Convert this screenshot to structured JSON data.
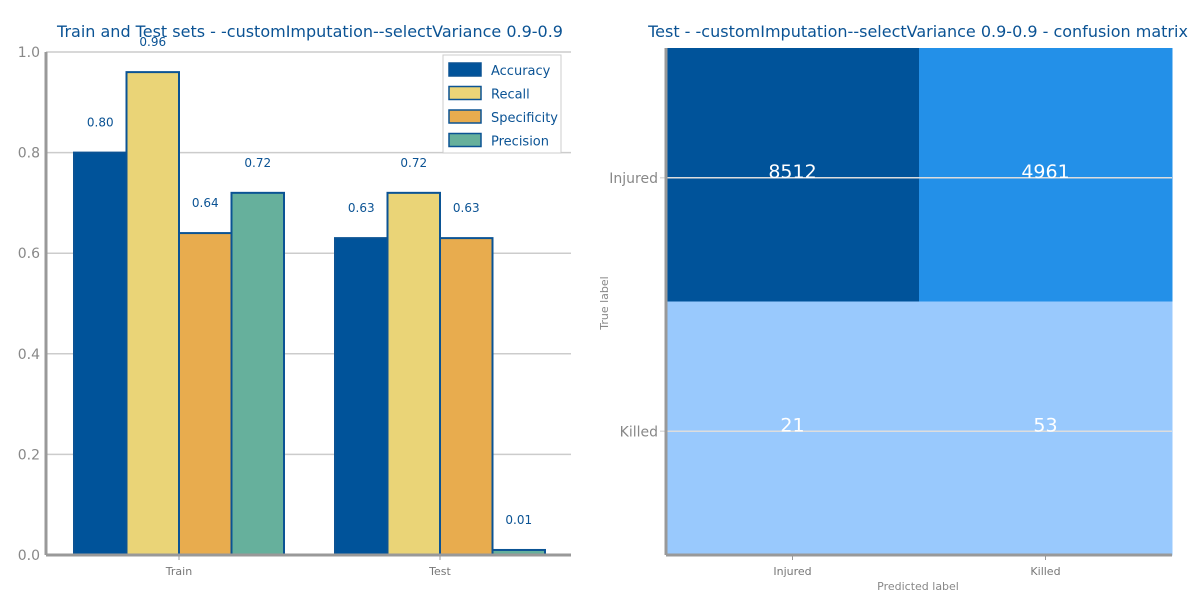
{
  "chart_data": [
    {
      "type": "bar",
      "title": "Train and Test sets - -customImputation--selectVariance 0.9-0.9",
      "categories": [
        "Train",
        "Test"
      ],
      "ylim": [
        0,
        1.0
      ],
      "yticks": [
        "0.0",
        "0.2",
        "0.4",
        "0.6",
        "0.8",
        "1.0"
      ],
      "grid": "horizontal",
      "legend_position": "top-right",
      "series": [
        {
          "name": "Accuracy",
          "color": "#00539a",
          "values": [
            0.8,
            0.63
          ],
          "labels": [
            "0.80",
            "0.63"
          ]
        },
        {
          "name": "Recall",
          "color": "#ead477",
          "values": [
            0.96,
            0.72
          ],
          "labels": [
            "0.96",
            "0.72"
          ]
        },
        {
          "name": "Specificity",
          "color": "#e8ac4e",
          "values": [
            0.64,
            0.63
          ],
          "labels": [
            "0.64",
            "0.63"
          ]
        },
        {
          "name": "Precision",
          "color": "#66b09c",
          "values": [
            0.72,
            0.01
          ],
          "labels": [
            "0.72",
            "0.01"
          ]
        }
      ]
    },
    {
      "type": "heatmap",
      "title": "Test - -customImputation--selectVariance 0.9-0.9 - confusion matrix",
      "xlabel": "Predicted label",
      "ylabel": "True label",
      "x_categories": [
        "Injured",
        "Killed"
      ],
      "y_categories": [
        "Injured",
        "Killed"
      ],
      "values": [
        [
          8512,
          4961
        ],
        [
          21,
          53
        ]
      ],
      "labels": [
        [
          "8512",
          "4961"
        ],
        [
          "21",
          "53"
        ]
      ],
      "cell_colors": [
        [
          "#00539a",
          "#2390e8"
        ],
        [
          "#99c9fd",
          "#99c9fd"
        ]
      ]
    }
  ]
}
